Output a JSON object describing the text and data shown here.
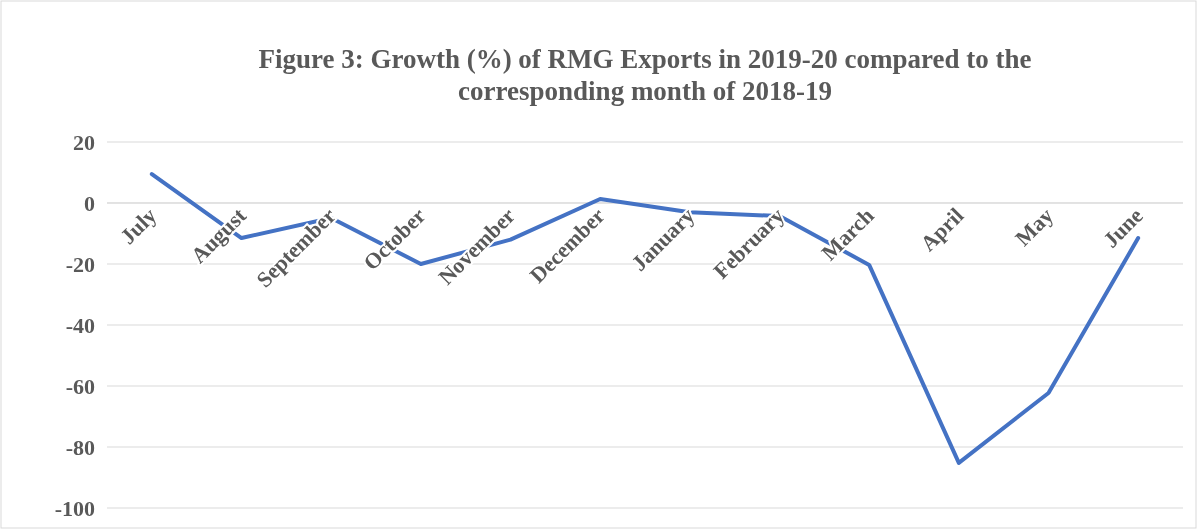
{
  "chart_data": {
    "type": "line",
    "title": "Figure 3: Growth (%) of RMG Exports in 2019-20 compared to the corresponding month of 2018-19",
    "categories": [
      "July",
      "August",
      "September",
      "October",
      "November",
      "December",
      "January",
      "February",
      "March",
      "April",
      "May",
      "June"
    ],
    "series": [
      {
        "color": "#4472c4",
        "values": [
          9.5,
          -11.5,
          -4.9,
          -20,
          -12,
          1.3,
          -3,
          -4.3,
          -20.3,
          -85.2,
          -62.3,
          -11.5
        ]
      }
    ],
    "ylim": [
      -100,
      20
    ],
    "yticks": [
      -100,
      -80,
      -60,
      -40,
      -20,
      0,
      20
    ],
    "grid": "y",
    "marker": "none",
    "line_style": "solid"
  }
}
